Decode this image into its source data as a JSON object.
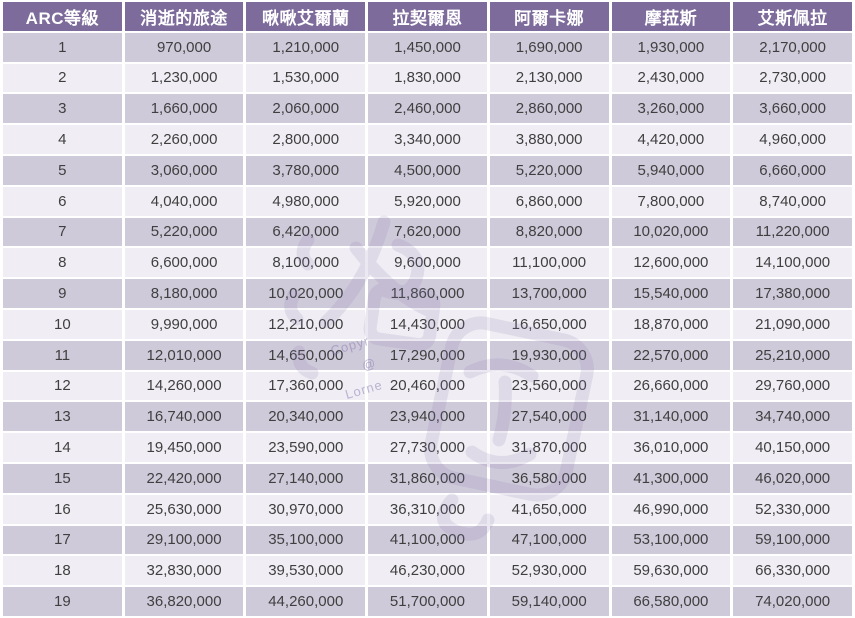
{
  "colors": {
    "header_bg": "#7C6B9B",
    "header_text": "#FFFFFF",
    "row_dark": "#CFCADA",
    "row_light": "#F0EEF4",
    "body_text": "#3F3F3F",
    "grid": "#FFFFFF",
    "watermark": "#8678B0"
  },
  "watermark": {
    "lines": [
      "Copyr",
      "@",
      "Lorne"
    ],
    "signature_icon": "handwritten-signature-glyphs"
  },
  "table": {
    "columns": [
      "ARC等級",
      "消逝的旅途",
      "啾啾艾爾蘭",
      "拉契爾恩",
      "阿爾卡娜",
      "摩菈斯",
      "艾斯佩拉"
    ],
    "rows": [
      [
        "1",
        "970,000",
        "1,210,000",
        "1,450,000",
        "1,690,000",
        "1,930,000",
        "2,170,000"
      ],
      [
        "2",
        "1,230,000",
        "1,530,000",
        "1,830,000",
        "2,130,000",
        "2,430,000",
        "2,730,000"
      ],
      [
        "3",
        "1,660,000",
        "2,060,000",
        "2,460,000",
        "2,860,000",
        "3,260,000",
        "3,660,000"
      ],
      [
        "4",
        "2,260,000",
        "2,800,000",
        "3,340,000",
        "3,880,000",
        "4,420,000",
        "4,960,000"
      ],
      [
        "5",
        "3,060,000",
        "3,780,000",
        "4,500,000",
        "5,220,000",
        "5,940,000",
        "6,660,000"
      ],
      [
        "6",
        "4,040,000",
        "4,980,000",
        "5,920,000",
        "6,860,000",
        "7,800,000",
        "8,740,000"
      ],
      [
        "7",
        "5,220,000",
        "6,420,000",
        "7,620,000",
        "8,820,000",
        "10,020,000",
        "11,220,000"
      ],
      [
        "8",
        "6,600,000",
        "8,100,000",
        "9,600,000",
        "11,100,000",
        "12,600,000",
        "14,100,000"
      ],
      [
        "9",
        "8,180,000",
        "10,020,000",
        "11,860,000",
        "13,700,000",
        "15,540,000",
        "17,380,000"
      ],
      [
        "10",
        "9,990,000",
        "12,210,000",
        "14,430,000",
        "16,650,000",
        "18,870,000",
        "21,090,000"
      ],
      [
        "11",
        "12,010,000",
        "14,650,000",
        "17,290,000",
        "19,930,000",
        "22,570,000",
        "25,210,000"
      ],
      [
        "12",
        "14,260,000",
        "17,360,000",
        "20,460,000",
        "23,560,000",
        "26,660,000",
        "29,760,000"
      ],
      [
        "13",
        "16,740,000",
        "20,340,000",
        "23,940,000",
        "27,540,000",
        "31,140,000",
        "34,740,000"
      ],
      [
        "14",
        "19,450,000",
        "23,590,000",
        "27,730,000",
        "31,870,000",
        "36,010,000",
        "40,150,000"
      ],
      [
        "15",
        "22,420,000",
        "27,140,000",
        "31,860,000",
        "36,580,000",
        "41,300,000",
        "46,020,000"
      ],
      [
        "16",
        "25,630,000",
        "30,970,000",
        "36,310,000",
        "41,650,000",
        "46,990,000",
        "52,330,000"
      ],
      [
        "17",
        "29,100,000",
        "35,100,000",
        "41,100,000",
        "47,100,000",
        "53,100,000",
        "59,100,000"
      ],
      [
        "18",
        "32,830,000",
        "39,530,000",
        "46,230,000",
        "52,930,000",
        "59,630,000",
        "66,330,000"
      ],
      [
        "19",
        "36,820,000",
        "44,260,000",
        "51,700,000",
        "59,140,000",
        "66,580,000",
        "74,020,000"
      ]
    ]
  },
  "chart_data": {
    "type": "table",
    "title": "",
    "categories": [
      1,
      2,
      3,
      4,
      5,
      6,
      7,
      8,
      9,
      10,
      11,
      12,
      13,
      14,
      15,
      16,
      17,
      18,
      19
    ],
    "category_label": "ARC等級",
    "series": [
      {
        "name": "消逝的旅途",
        "values": [
          970000,
          1230000,
          1660000,
          2260000,
          3060000,
          4040000,
          5220000,
          6600000,
          8180000,
          9990000,
          12010000,
          14260000,
          16740000,
          19450000,
          22420000,
          25630000,
          29100000,
          32830000,
          36820000
        ]
      },
      {
        "name": "啾啾艾爾蘭",
        "values": [
          1210000,
          1530000,
          2060000,
          2800000,
          3780000,
          4980000,
          6420000,
          8100000,
          10020000,
          12210000,
          14650000,
          17360000,
          20340000,
          23590000,
          27140000,
          30970000,
          35100000,
          39530000,
          44260000
        ]
      },
      {
        "name": "拉契爾恩",
        "values": [
          1450000,
          1830000,
          2460000,
          3340000,
          4500000,
          5920000,
          7620000,
          9600000,
          11860000,
          14430000,
          17290000,
          20460000,
          23940000,
          27730000,
          31860000,
          36310000,
          41100000,
          46230000,
          51700000
        ]
      },
      {
        "name": "阿爾卡娜",
        "values": [
          1690000,
          2130000,
          2860000,
          3880000,
          5220000,
          6860000,
          8820000,
          11100000,
          13700000,
          16650000,
          19930000,
          23560000,
          27540000,
          31870000,
          36580000,
          41650000,
          47100000,
          52930000,
          59140000
        ]
      },
      {
        "name": "摩菈斯",
        "values": [
          1930000,
          2430000,
          3260000,
          4420000,
          5940000,
          7800000,
          10020000,
          12600000,
          15540000,
          18870000,
          22570000,
          26660000,
          31140000,
          36010000,
          41300000,
          46990000,
          53100000,
          59630000,
          66580000
        ]
      },
      {
        "name": "艾斯佩拉",
        "values": [
          2170000,
          2730000,
          3660000,
          4960000,
          6660000,
          8740000,
          11220000,
          14100000,
          17380000,
          21090000,
          25210000,
          29760000,
          34740000,
          40150000,
          46020000,
          52330000,
          59100000,
          66330000,
          74020000
        ]
      }
    ],
    "layout": {
      "striped_rows": true,
      "header_style": "purple",
      "grid": "white-separators"
    }
  }
}
